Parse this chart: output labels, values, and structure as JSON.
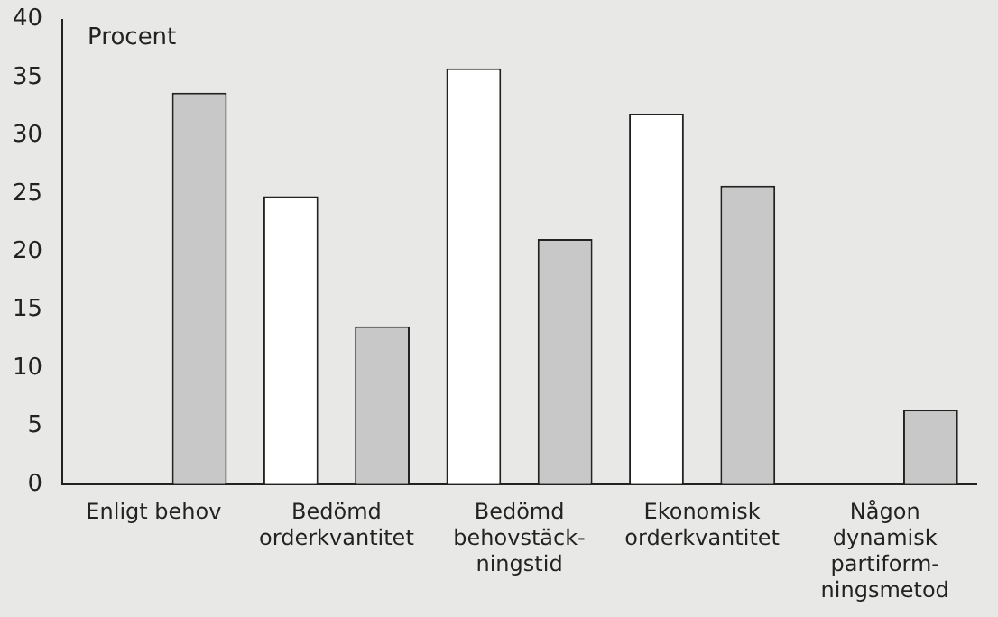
{
  "chart_data": {
    "type": "bar",
    "ylabel": "Procent",
    "categories": [
      "Enligt behov",
      "Bedömd\norderkvantitet",
      "Bedömd\nbehovstäck-\nningstid",
      "Ekonomisk\norderkvantitet",
      "Någon\ndynamisk\npartiform-\nningsmetod"
    ],
    "series": [
      {
        "color": "#ffffff",
        "values": [
          null,
          24.8,
          35.8,
          31.9,
          null
        ]
      },
      {
        "color": "#c8c8c8",
        "values": [
          33.7,
          13.6,
          21.1,
          25.7,
          6.4
        ]
      }
    ],
    "ylim": [
      0,
      40
    ],
    "yticks": [
      0,
      5,
      10,
      15,
      20,
      25,
      30,
      35,
      40
    ],
    "grid": false,
    "legend": false
  }
}
